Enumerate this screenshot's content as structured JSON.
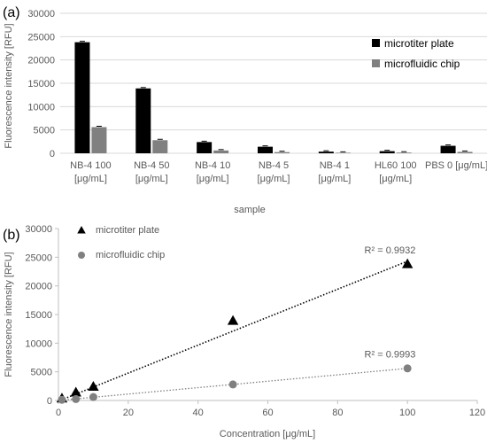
{
  "chart_data": [
    {
      "type": "bar",
      "panel_label": "(a)",
      "xlabel": "sample",
      "ylabel": "Fluorescence intensity [RFU]",
      "ylim": [
        0,
        30000
      ],
      "yticks": [
        "0",
        "5000",
        "10000",
        "15000",
        "20000",
        "25000",
        "30000"
      ],
      "ytick_values": [
        0,
        5000,
        10000,
        15000,
        20000,
        25000,
        30000
      ],
      "grid": true,
      "legend_position": "right",
      "categories": [
        [
          "NB-4 100",
          "[μg/mL]"
        ],
        [
          "NB-4 50",
          "[μg/mL]"
        ],
        [
          "NB-4 10",
          "[μg/mL]"
        ],
        [
          "NB-4 5",
          "[μg/mL]"
        ],
        [
          "NB-4 1",
          "[μg/mL]"
        ],
        [
          "HL60 100",
          "[μg/mL]"
        ],
        [
          "PBS 0 [μg/mL]"
        ]
      ],
      "series": [
        {
          "name": "microtiter plate",
          "color": "#000000",
          "values": [
            23800,
            13900,
            2400,
            1400,
            350,
            450,
            1600
          ]
        },
        {
          "name": "microfluidic chip",
          "color": "#808080",
          "values": [
            5600,
            2800,
            600,
            250,
            120,
            150,
            300
          ]
        }
      ]
    },
    {
      "type": "scatter",
      "panel_label": "(b)",
      "xlabel": "Concentration [μg/mL]",
      "ylabel": "Fluorescence intensity [RFU]",
      "xlim": [
        0,
        120
      ],
      "ylim": [
        0,
        30000
      ],
      "xticks": [
        "0",
        "20",
        "40",
        "60",
        "80",
        "100",
        "120"
      ],
      "xtick_values": [
        0,
        20,
        40,
        60,
        80,
        100,
        120
      ],
      "yticks": [
        "0",
        "5000",
        "10000",
        "15000",
        "20000",
        "25000",
        "30000"
      ],
      "ytick_values": [
        0,
        5000,
        10000,
        15000,
        20000,
        25000,
        30000
      ],
      "grid": false,
      "legend_position": "top-left",
      "series": [
        {
          "name": "microtiter plate",
          "marker": "triangle",
          "color": "#000000",
          "x": [
            1,
            5,
            10,
            50,
            100
          ],
          "y": [
            350,
            1400,
            2400,
            13900,
            23800
          ],
          "trendline": {
            "x": [
              0,
              100
            ],
            "y": [
              -100,
              24300
            ],
            "style": "dotted",
            "color": "#000000"
          },
          "r2_label": "R² = 0.9932",
          "r2_anchor": [
            95,
            25700
          ]
        },
        {
          "name": "microfluidic chip",
          "marker": "circle",
          "color": "#808080",
          "x": [
            1,
            5,
            10,
            50,
            100
          ],
          "y": [
            120,
            250,
            600,
            2800,
            5600
          ],
          "trendline": {
            "x": [
              0,
              100
            ],
            "y": [
              0,
              5600
            ],
            "style": "dotted",
            "color": "#808080"
          },
          "r2_label": "R² = 0.9993",
          "r2_anchor": [
            95,
            7500
          ]
        }
      ]
    }
  ]
}
